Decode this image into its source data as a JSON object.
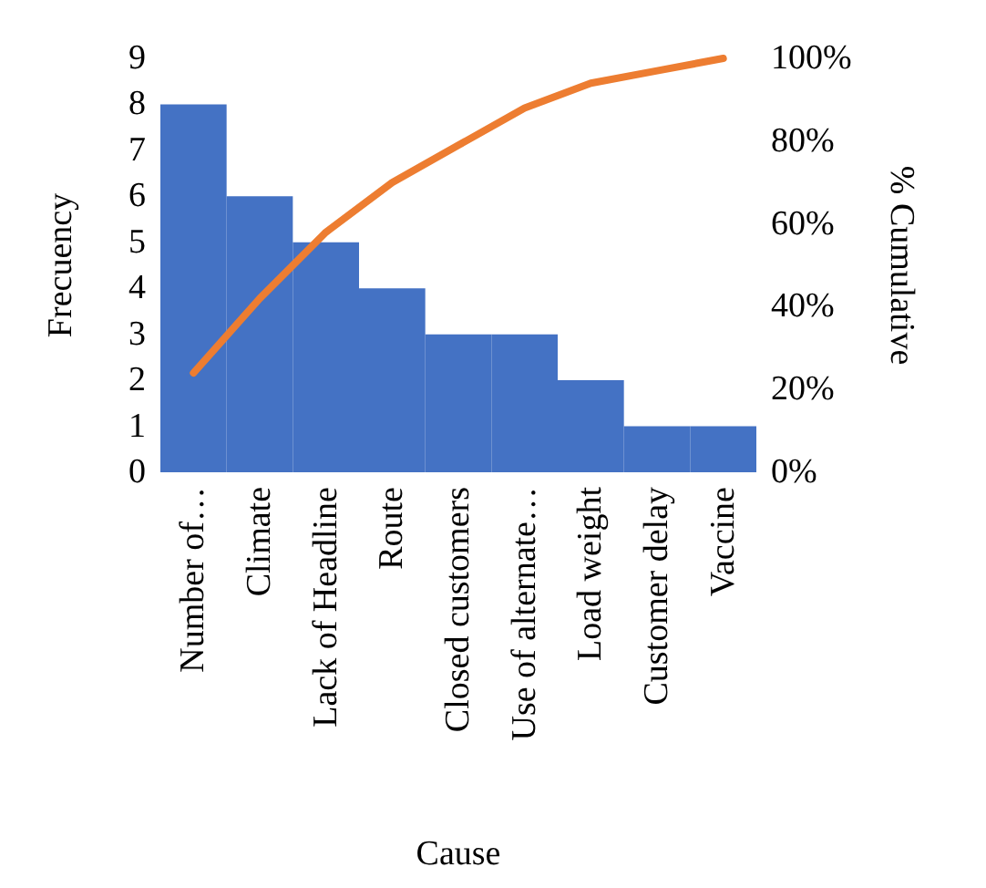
{
  "chart_data": {
    "type": "bar",
    "xlabel": "Cause",
    "ylabel": "Frecuency",
    "y2label": "% Cumulative",
    "categories": [
      "Number of…",
      "Climate",
      "Lack of Headline",
      "Route",
      "Closed customers",
      "Use of alternate…",
      "Load weight",
      "Customer delay",
      "Vaccine"
    ],
    "series": [
      {
        "color": "#4472c4",
        "values": [
          8,
          6,
          5,
          4,
          3,
          3,
          2,
          1,
          1
        ]
      },
      {
        "type": "line",
        "axis": "y2",
        "color": "#ed7d31",
        "values": [
          24,
          42,
          58,
          70,
          79,
          88,
          94,
          97,
          100
        ]
      }
    ],
    "ylim": [
      0,
      9
    ],
    "yticks": [
      0,
      1,
      2,
      3,
      4,
      5,
      6,
      7,
      8,
      9
    ],
    "y2lim": [
      0,
      100
    ],
    "y2ticks": [
      {
        "value": 0,
        "label": "0%"
      },
      {
        "value": 20,
        "label": "20%"
      },
      {
        "value": 40,
        "label": "40%"
      },
      {
        "value": 60,
        "label": "60%"
      },
      {
        "value": 80,
        "label": "80%"
      },
      {
        "value": 100,
        "label": "100%"
      }
    ],
    "grid": false,
    "marker": "none",
    "line_style": "solid"
  }
}
